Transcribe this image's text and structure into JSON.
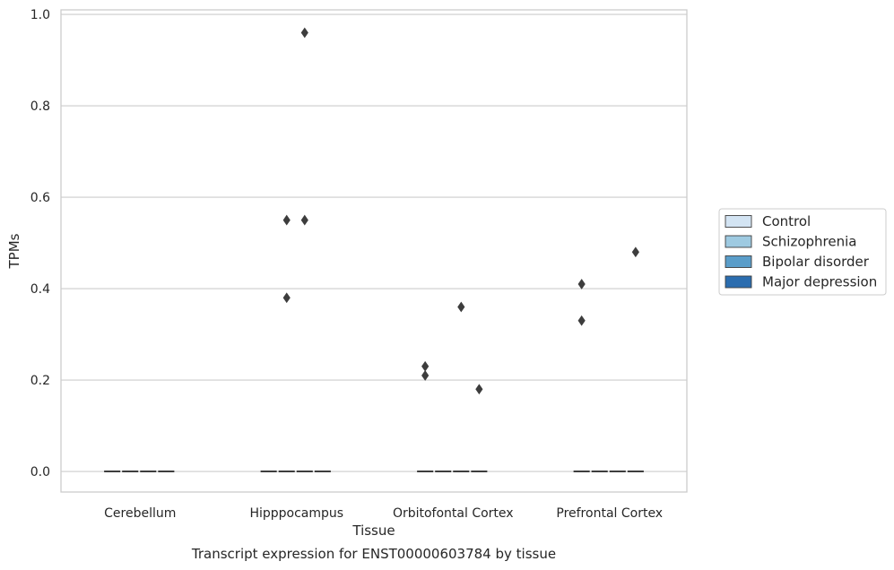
{
  "chart_data": {
    "type": "boxplot",
    "xlabel": "Tissue",
    "ylabel": "TPMs",
    "caption": "Transcript expression for ENST00000603784 by tissue",
    "categories": [
      "Cerebellum",
      "Hipppocampus",
      "Orbitofontal Cortex",
      "Prefrontal Cortex"
    ],
    "ylim": [
      -0.045,
      1.01
    ],
    "yticks": [
      "0.0",
      "0.2",
      "0.4",
      "0.6",
      "0.8",
      "1.0"
    ],
    "grid": true,
    "legend_position": "right",
    "series": [
      {
        "name": "Control",
        "color": "#d3e4f3",
        "median": [
          0,
          0,
          0,
          0
        ],
        "outliers": [
          [],
          [],
          [
            0.23,
            0.21
          ],
          [
            0.41,
            0.33
          ]
        ]
      },
      {
        "name": "Schizophrenia",
        "color": "#9ecae1",
        "median": [
          0,
          0,
          0,
          0
        ],
        "outliers": [
          [],
          [
            0.55,
            0.38
          ],
          [],
          []
        ]
      },
      {
        "name": "Bipolar disorder",
        "color": "#5a9dc9",
        "median": [
          0,
          0,
          0,
          0
        ],
        "outliers": [
          [],
          [
            0.96,
            0.55
          ],
          [
            0.36
          ],
          []
        ]
      },
      {
        "name": "Major depression",
        "color": "#2b6daf",
        "median": [
          0,
          0,
          0,
          0
        ],
        "outliers": [
          [],
          [],
          [
            0.18
          ],
          [
            0.48
          ]
        ]
      }
    ]
  }
}
